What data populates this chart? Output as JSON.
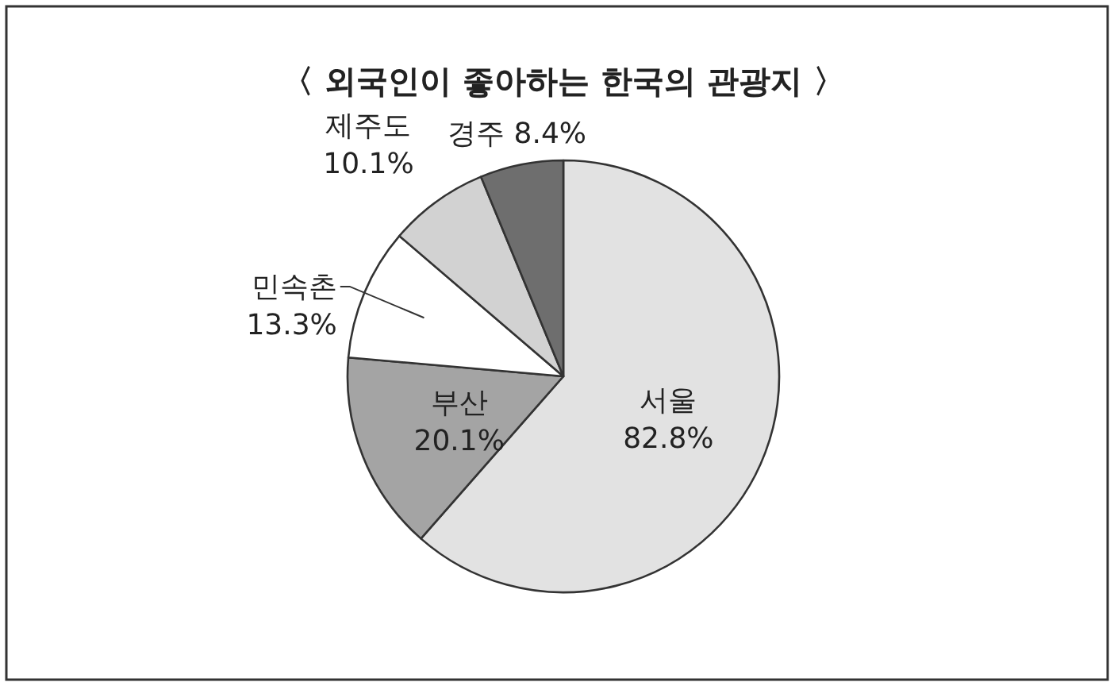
{
  "chart_data": {
    "type": "pie",
    "title": "〈 외국인이 좋아하는 한국의 관광지 〉",
    "categories": [
      "서울",
      "부산",
      "민속촌",
      "제주도",
      "경주"
    ],
    "values": [
      82.8,
      20.1,
      13.3,
      10.1,
      8.4
    ],
    "value_labels": [
      "82.8%",
      "20.1%",
      "13.3%",
      "10.1%",
      "8.4%"
    ],
    "colors": [
      "#e2e2e2",
      "#a4a4a4",
      "#ffffff",
      "#d2d2d2",
      "#6e6e6e"
    ]
  }
}
